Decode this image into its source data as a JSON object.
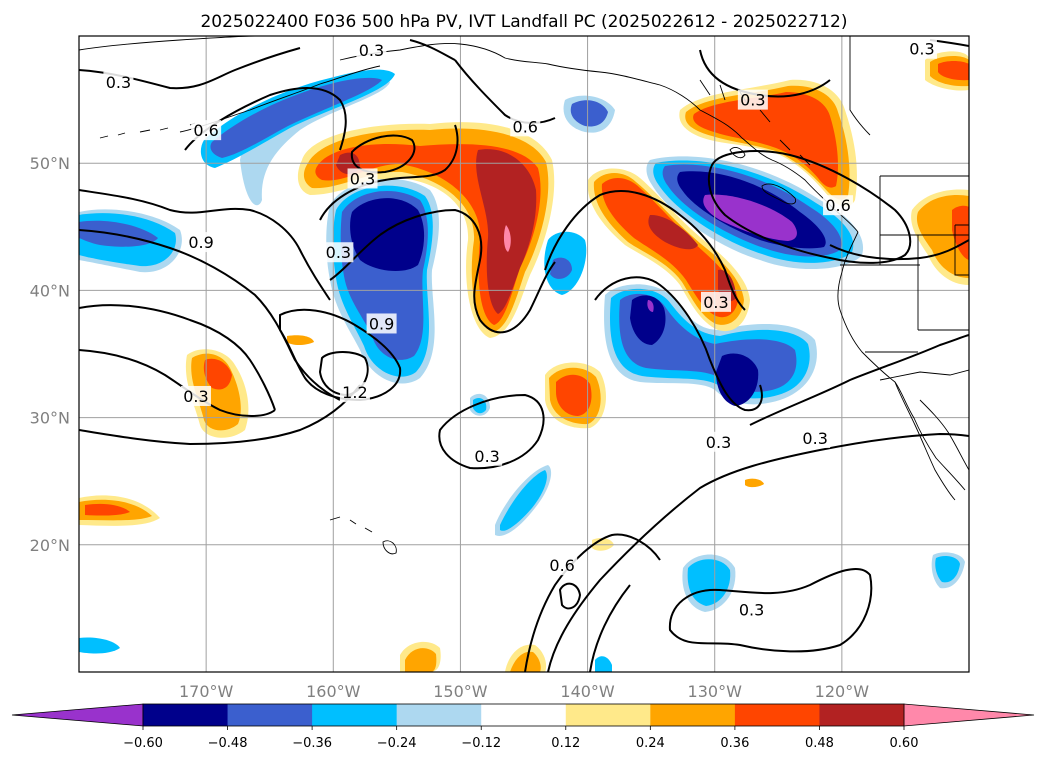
{
  "title": "2025022400 F036 500 hPa PV, IVT Landfall PC (2025022612 - 2025022712)",
  "map": {
    "projection": "PlateCarree",
    "lon_range": [
      -180,
      -110
    ],
    "lat_range": [
      10,
      60
    ],
    "lon_ticks": [
      -170,
      -160,
      -150,
      -140,
      -130,
      -120
    ],
    "lat_ticks": [
      20,
      30,
      40,
      50
    ],
    "lon_tick_labels": [
      "170°W",
      "160°W",
      "150°W",
      "140°W",
      "130°W",
      "120°W"
    ],
    "lat_tick_labels": [
      "20°N",
      "30°N",
      "40°N",
      "50°N"
    ],
    "grid": true
  },
  "colorbar": {
    "levels": [
      -0.6,
      -0.48,
      -0.36,
      -0.24,
      -0.12,
      0.12,
      0.24,
      0.36,
      0.48,
      0.6
    ],
    "labels": [
      "−0.60",
      "−0.48",
      "−0.36",
      "−0.24",
      "−0.12",
      "0.12",
      "0.24",
      "0.36",
      "0.48",
      "0.60"
    ],
    "colors": [
      "#9932cc",
      "#00008b",
      "#3b5fce",
      "#00bfff",
      "#add8f0",
      "#ffffff",
      "#ffe98a",
      "#ffa500",
      "#ff4500",
      "#b22222",
      "#ff88aa"
    ],
    "extend": "both"
  },
  "contour_labels": [
    {
      "text": "0.3",
      "lon": -176.9,
      "lat": 56.4
    },
    {
      "text": "0.6",
      "lon": -170.0,
      "lat": 52.6
    },
    {
      "text": "0.9",
      "lon": -170.4,
      "lat": 43.8
    },
    {
      "text": "0.3",
      "lon": -170.8,
      "lat": 31.7
    },
    {
      "text": "0.3",
      "lon": -159.6,
      "lat": 43.0
    },
    {
      "text": "0.3",
      "lon": -157.7,
      "lat": 48.8
    },
    {
      "text": "0.9",
      "lon": -156.2,
      "lat": 37.4
    },
    {
      "text": "1.2",
      "lon": -158.3,
      "lat": 32.0
    },
    {
      "text": "0.3",
      "lon": -147.9,
      "lat": 27.0
    },
    {
      "text": "0.6",
      "lon": -144.9,
      "lat": 52.9
    },
    {
      "text": "0.3",
      "lon": -157.0,
      "lat": 58.9
    },
    {
      "text": "0.6",
      "lon": -142.0,
      "lat": 18.4
    },
    {
      "text": "0.3",
      "lon": -129.7,
      "lat": 28.1
    },
    {
      "text": "0.3",
      "lon": -122.1,
      "lat": 28.4
    },
    {
      "text": "0.3",
      "lon": -127.0,
      "lat": 55.0
    },
    {
      "text": "0.3",
      "lon": -129.9,
      "lat": 39.1
    },
    {
      "text": "0.6",
      "lon": -120.3,
      "lat": 46.7
    },
    {
      "text": "0.3",
      "lon": -127.1,
      "lat": 14.9
    },
    {
      "text": "0.3",
      "lon": -113.7,
      "lat": 59.0
    }
  ]
}
